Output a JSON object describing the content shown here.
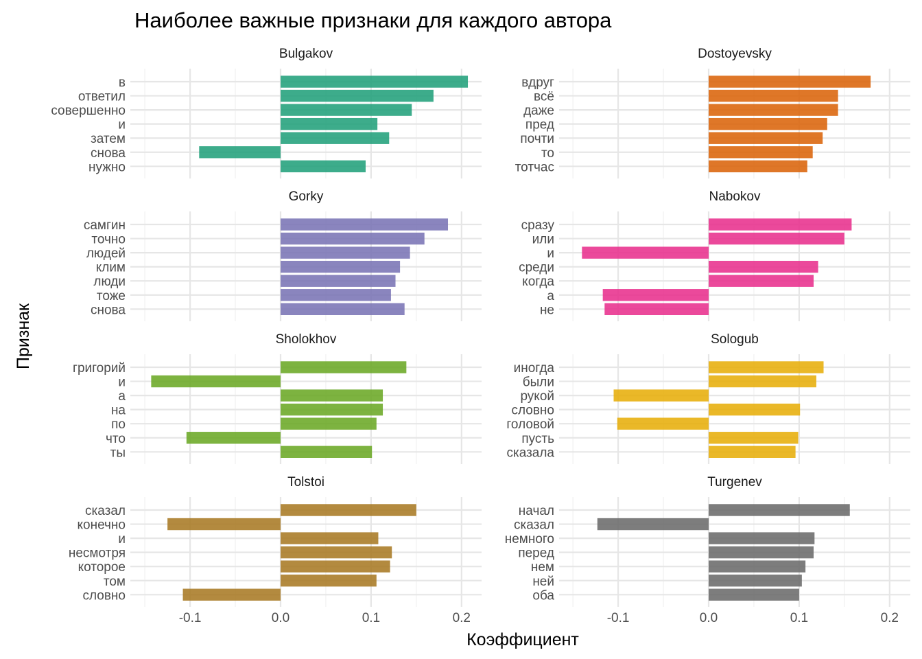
{
  "chart_data": {
    "type": "bar",
    "orientation": "horizontal",
    "title": "Наиболее важные признаки для каждого автора",
    "xlabel": "Коэффициент",
    "ylabel": "Признак",
    "xlim": [
      -0.15,
      0.22
    ],
    "x_ticks": [
      "-0.1",
      "0.0",
      "0.1",
      "0.2"
    ],
    "x_tick_values": [
      -0.1,
      0.0,
      0.1,
      0.2
    ],
    "grid": true,
    "legend": "none",
    "panels": [
      {
        "name": "Bulgakov",
        "color": "#1B9E77",
        "features": [
          "в",
          "ответил",
          "совершенно",
          "и",
          "затем",
          "снова",
          "нужно"
        ],
        "values": [
          0.207,
          0.169,
          0.145,
          0.107,
          0.12,
          -0.09,
          0.094
        ]
      },
      {
        "name": "Dostoyevsky",
        "color": "#D95F02",
        "features": [
          "вдруг",
          "всё",
          "даже",
          "пред",
          "почти",
          "то",
          "тотчас"
        ],
        "values": [
          0.179,
          0.143,
          0.143,
          0.131,
          0.126,
          0.115,
          0.109
        ]
      },
      {
        "name": "Gorky",
        "color": "#7570B3",
        "features": [
          "самгин",
          "точно",
          "людей",
          "клим",
          "люди",
          "тоже",
          "снова"
        ],
        "values": [
          0.185,
          0.159,
          0.143,
          0.132,
          0.127,
          0.122,
          0.137
        ]
      },
      {
        "name": "Nabokov",
        "color": "#E7298A",
        "features": [
          "сразу",
          "или",
          "и",
          "среди",
          "когда",
          "а",
          "не"
        ],
        "values": [
          0.158,
          0.15,
          -0.14,
          0.121,
          0.116,
          -0.117,
          -0.115
        ]
      },
      {
        "name": "Sholokhov",
        "color": "#66A61E",
        "features": [
          "григорий",
          "и",
          "а",
          "на",
          "по",
          "что",
          "ты"
        ],
        "values": [
          0.139,
          -0.143,
          0.113,
          0.113,
          0.106,
          -0.104,
          0.101
        ]
      },
      {
        "name": "Sologub",
        "color": "#E6AB02",
        "features": [
          "иногда",
          "были",
          "рукой",
          "словно",
          "головой",
          "пусть",
          "сказала"
        ],
        "values": [
          0.127,
          0.119,
          -0.105,
          0.101,
          -0.101,
          0.099,
          0.096
        ]
      },
      {
        "name": "Tolstoi",
        "color": "#A6761D",
        "features": [
          "сказал",
          "конечно",
          "и",
          "несмотря",
          "которое",
          "том",
          "словно"
        ],
        "values": [
          0.15,
          -0.125,
          0.108,
          0.123,
          0.121,
          0.106,
          -0.108
        ]
      },
      {
        "name": "Turgenev",
        "color": "#666666",
        "features": [
          "начал",
          "сказал",
          "немного",
          "перед",
          "нем",
          "ней",
          "оба"
        ],
        "values": [
          0.156,
          -0.123,
          0.117,
          0.116,
          0.107,
          0.103,
          0.1
        ]
      }
    ]
  }
}
